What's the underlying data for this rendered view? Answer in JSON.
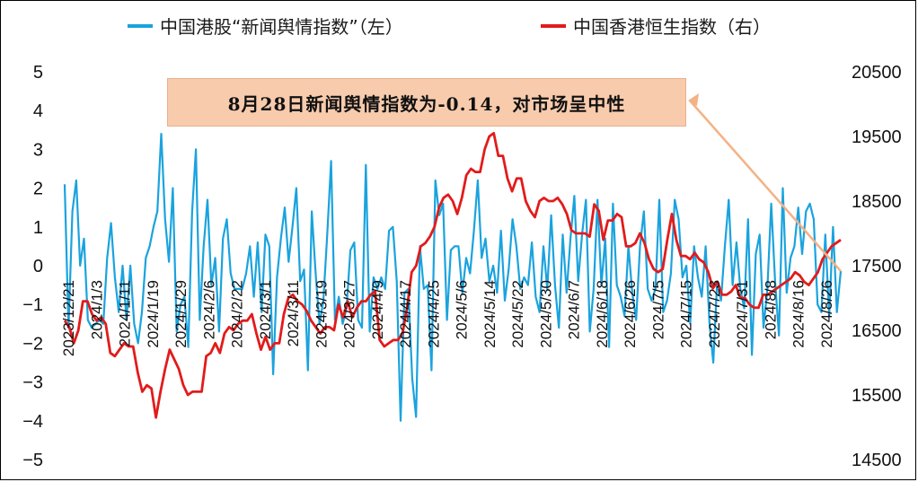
{
  "legend": {
    "left_series": "中国港股“新闻舆情指数”（左）",
    "right_series": "中国香港恒生指数（右）"
  },
  "annotation": "8月28日新闻舆情指数为-0.14，对市场呈中性",
  "colors": {
    "sentiment": "#1aa3de",
    "hsi": "#e21b1b",
    "annotation_bg": "#f8cbad",
    "arrow": "#f4b183"
  },
  "chart_data": {
    "type": "line",
    "title": "",
    "x_tick_labels": [
      "2023/12/21",
      "2024/1/3",
      "2024/1/11",
      "2024/1/19",
      "2024/1/29",
      "2024/2/6",
      "2024/2/22",
      "2024/3/1",
      "2024/3/11",
      "2024/3/19",
      "2024/3/27",
      "2024/4/9",
      "2024/4/17",
      "2024/4/25",
      "2024/5/6",
      "2024/5/14",
      "2024/5/22",
      "2024/5/30",
      "2024/6/7",
      "2024/6/18",
      "2024/6/26",
      "2024/7/5",
      "2024/7/15",
      "2024/7/23",
      "2024/7/31",
      "2024/8/8",
      "2024/8/16",
      "2024/8/26"
    ],
    "y_left": {
      "range": [
        -5,
        5
      ],
      "ticks": [
        "5",
        "4",
        "3",
        "2",
        "1",
        "0",
        "−1",
        "−2",
        "−3",
        "−4",
        "−5"
      ]
    },
    "y_right": {
      "range": [
        14500,
        20500
      ],
      "ticks": [
        "20500",
        "19500",
        "18500",
        "17500",
        "16500",
        "15500",
        "14500"
      ]
    },
    "series": [
      {
        "name": "中国港股“新闻舆情指数”（左）",
        "axis": "left",
        "values": [
          2.1,
          -1.6,
          1.4,
          2.2,
          0.0,
          0.7,
          -1.4,
          -1.6,
          -1.5,
          -1.4,
          -1.5,
          0.2,
          1.1,
          -0.3,
          -1.2,
          0.0,
          -1.4,
          0.0,
          -1.5,
          -2.0,
          -1.2,
          0.2,
          0.5,
          1.0,
          1.4,
          3.4,
          1.2,
          0.1,
          2.0,
          -1.7,
          -1.0,
          -0.8,
          -2.1,
          1.4,
          3.0,
          -1.4,
          0.5,
          1.7,
          -0.5,
          0.2,
          -1.7,
          0.7,
          1.2,
          -0.2,
          -0.6,
          -0.6,
          -0.6,
          -0.2,
          0.5,
          -0.8,
          0.6,
          -1.2,
          0.8,
          0.5,
          -2.8,
          -0.3,
          0.7,
          1.5,
          0.1,
          1.0,
          2.0,
          -0.4,
          -0.1,
          -2.7,
          1.4,
          -0.2,
          -1.5,
          -0.9,
          0.8,
          2.7,
          -1.4,
          -0.8,
          -1.5,
          -1.1,
          0.4,
          0.6,
          -1.4,
          -1.6,
          2.6,
          -1.7,
          -0.3,
          -0.6,
          -0.3,
          -0.6,
          0.9,
          1.0,
          -0.4,
          -4.0,
          -0.7,
          -0.6,
          -2.9,
          -3.9,
          0.5,
          -0.6,
          -0.5,
          -2.7,
          2.2,
          1.3,
          1.6,
          -1.4,
          0.4,
          0.5,
          0.5,
          -0.7,
          0.2,
          -0.2,
          0.9,
          2.2,
          0.2,
          0.7,
          -0.4,
          0.0,
          -0.7,
          0.9,
          -0.9,
          -0.1,
          1.2,
          0.5,
          -0.6,
          -0.3,
          -0.5,
          0.6,
          -0.8,
          -1.2,
          0.5,
          -0.6,
          1.3,
          -0.5,
          -1.6,
          0.8,
          -0.7,
          0.7,
          1.8,
          -0.4,
          0.8,
          1.7,
          -1.7,
          -0.6,
          1.7,
          -0.5,
          0.7,
          -2.1,
          1.6,
          -0.5,
          -0.8,
          -1.3,
          0.5,
          -0.7,
          -1.4,
          0.5,
          1.4,
          -0.6,
          -0.9,
          -0.6,
          1.7,
          -1.2,
          -0.9,
          -0.2,
          1.7,
          1.2,
          -0.3,
          0.0,
          -1.5,
          0.5,
          -0.3,
          -0.8,
          0.5,
          -1.5,
          -2.5,
          -0.4,
          -0.9,
          0.5,
          1.7,
          -0.5,
          0.6,
          -0.6,
          -1.1,
          1.2,
          -2.3,
          0.3,
          0.8,
          -1.6,
          -0.6,
          1.6,
          -0.4,
          -1.8,
          2.0,
          -0.7,
          0.2,
          0.5,
          1.5,
          0.3,
          1.4,
          1.6,
          1.2,
          -1.0,
          -1.2,
          0.8,
          -1.3,
          1.0,
          -1.2,
          -0.14
        ]
      },
      {
        "name": "中国香港恒生指数（右）",
        "axis": "right",
        "values": [
          16650,
          16550,
          16300,
          16500,
          16950,
          16950,
          16750,
          16650,
          16700,
          16600,
          16150,
          16100,
          16200,
          16300,
          16250,
          16250,
          15850,
          15550,
          15650,
          15600,
          15150,
          15550,
          15900,
          16200,
          16050,
          15900,
          15650,
          15500,
          15550,
          15550,
          15550,
          16100,
          16150,
          16300,
          16150,
          16450,
          16550,
          16500,
          16600,
          16650,
          16650,
          16750,
          16450,
          16200,
          16400,
          16200,
          16300,
          16300,
          16750,
          17000,
          17050,
          16950,
          16900,
          16800,
          16650,
          16550,
          16450,
          16550,
          16550,
          16500,
          16900,
          16700,
          16950,
          16700,
          16850,
          16950,
          16950,
          17050,
          17100,
          16350,
          16250,
          16300,
          16350,
          16350,
          16450,
          16850,
          17400,
          17500,
          17800,
          17850,
          17950,
          18100,
          18400,
          18550,
          18600,
          18500,
          18300,
          18550,
          18900,
          19000,
          18950,
          18950,
          19300,
          19500,
          19550,
          19200,
          19200,
          18850,
          18650,
          18850,
          18850,
          18500,
          18350,
          18250,
          18500,
          18550,
          18500,
          18500,
          18550,
          18450,
          18300,
          18050,
          18000,
          18000,
          18000,
          17950,
          18450,
          18350,
          17900,
          18200,
          18200,
          18300,
          18250,
          17800,
          17800,
          17850,
          18000,
          17850,
          17600,
          17450,
          17400,
          17450,
          17900,
          18300,
          17900,
          17650,
          17650,
          17600,
          17700,
          17600,
          17550,
          17400,
          17150,
          17250,
          17050,
          17050,
          17100,
          17200,
          17000,
          17000,
          16900,
          16850,
          16850,
          17050,
          17050,
          17100,
          17150,
          17200,
          17250,
          17300,
          17400,
          17350,
          17250,
          17200,
          17300,
          17400,
          17600,
          17700,
          17800,
          17850,
          17900
        ]
      }
    ],
    "grid": false,
    "legend_position": "top"
  }
}
